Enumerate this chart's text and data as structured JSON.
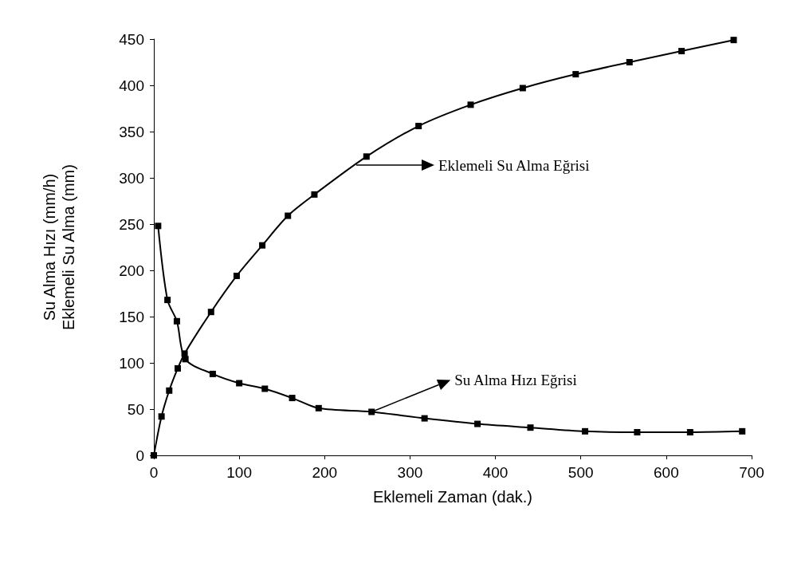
{
  "chart_data": {
    "type": "line",
    "xlabel": "Eklemeli Zaman (dak.)",
    "ylabel": "Su Alma Hızı (mm/h)\nEklemeli Su Alma (mm)",
    "xlim": [
      0,
      700
    ],
    "xticks": [
      0,
      100,
      200,
      300,
      400,
      500,
      600,
      700
    ],
    "ylim": [
      0,
      450
    ],
    "yticks": [
      0,
      50,
      100,
      150,
      200,
      250,
      300,
      350,
      400,
      450
    ],
    "grid": false,
    "marker": "square",
    "line_style": "solid",
    "series": [
      {
        "color": "#000000",
        "x": [
          0,
          9,
          18,
          28,
          36,
          67,
          97,
          127,
          157,
          188,
          249,
          310,
          371,
          432,
          494,
          557,
          618,
          679
        ],
        "values": [
          0,
          42,
          70,
          94,
          110,
          155,
          194,
          227,
          259,
          282,
          323,
          356,
          379,
          397,
          412,
          425,
          437,
          449
        ]
      },
      {
        "color": "#000000",
        "x": [
          5,
          16,
          27,
          37,
          69,
          100,
          130,
          162,
          193,
          255,
          317,
          379,
          441,
          505,
          566,
          628,
          689
        ],
        "values": [
          248,
          168,
          145,
          104,
          88,
          78,
          72,
          62,
          51,
          47,
          40,
          34,
          30,
          26,
          25,
          25,
          26
        ]
      }
    ],
    "annotations": [
      "Eklemeli Su Alma Eğrisi",
      {
        "text": "Su Alma Hızı Eğrisi",
        "x": 255,
        "y": 47
      }
    ]
  }
}
